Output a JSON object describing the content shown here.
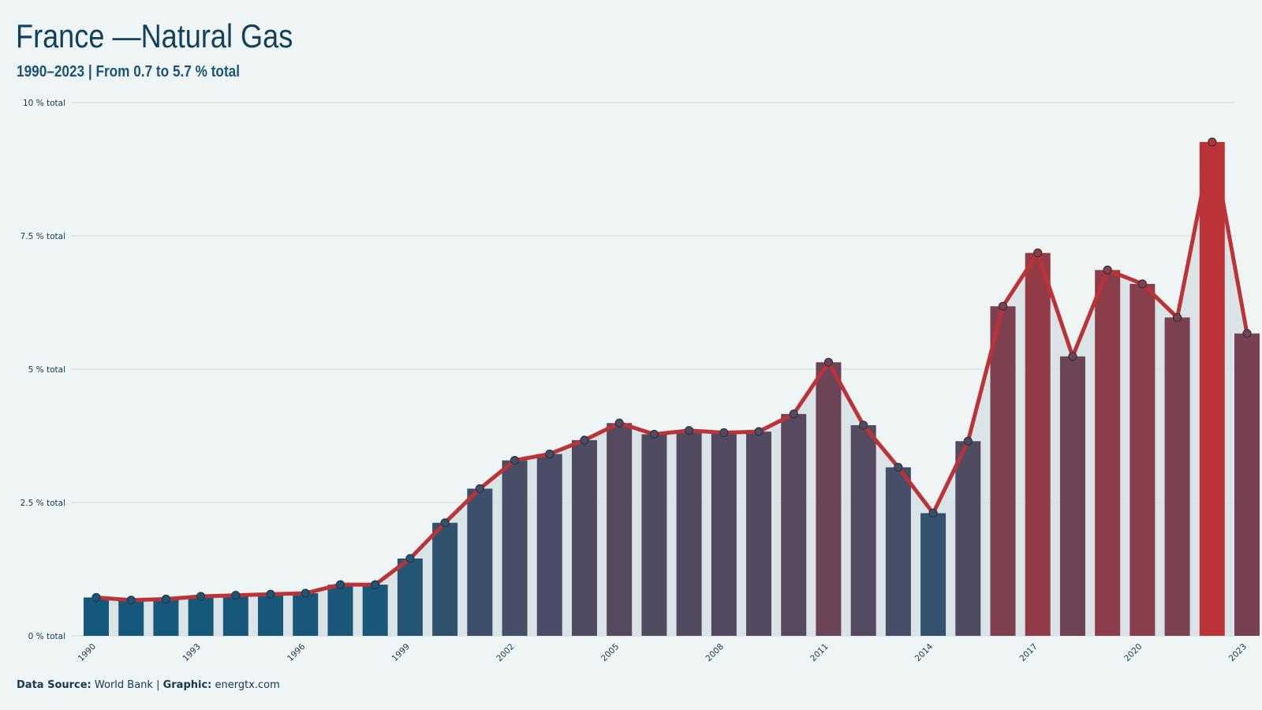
{
  "header": {
    "title": "France —Natural Gas",
    "subtitle": "1990–2023 | From 0.7 to 5.7 % total"
  },
  "caption": {
    "source_label": "Data Source:",
    "source_value": " World Bank | ",
    "graphic_label": "Graphic:",
    "graphic_value": " energtx.com"
  },
  "colors": {
    "background": "#eff5f5",
    "low": "#15587b",
    "high": "#bb3336",
    "line": "#bb3336",
    "grid": "#d3dada",
    "area": "#d6e1e4"
  },
  "chart_data": {
    "type": "bar",
    "x": [
      1990,
      1991,
      1992,
      1993,
      1994,
      1995,
      1996,
      1997,
      1998,
      1999,
      2000,
      2001,
      2002,
      2003,
      2004,
      2005,
      2006,
      2007,
      2008,
      2009,
      2010,
      2011,
      2012,
      2013,
      2014,
      2015,
      2016,
      2017,
      2018,
      2019,
      2020,
      2021,
      2022,
      2023
    ],
    "values": [
      0.72,
      0.67,
      0.69,
      0.74,
      0.76,
      0.78,
      0.8,
      0.96,
      0.96,
      1.45,
      2.12,
      2.76,
      3.29,
      3.41,
      3.67,
      3.99,
      3.78,
      3.85,
      3.81,
      3.83,
      4.16,
      5.13,
      3.95,
      3.16,
      2.3,
      3.65,
      6.18,
      7.18,
      5.24,
      6.86,
      6.6,
      5.97,
      9.26,
      5.67
    ],
    "y_tick_labels": [
      "0 % total",
      "2.5 % total",
      "5 % total",
      "7.5 % total",
      "10 % total"
    ],
    "y_ticks": [
      0,
      2.5,
      5,
      7.5,
      10
    ],
    "x_tick_labels": [
      "1990",
      "1993",
      "1996",
      "1999",
      "2002",
      "2005",
      "2008",
      "2011",
      "2014",
      "2017",
      "2020",
      "2023"
    ],
    "ylim": [
      0,
      10
    ],
    "grid": true,
    "overlay": "line",
    "xlabel": "",
    "ylabel": ""
  }
}
